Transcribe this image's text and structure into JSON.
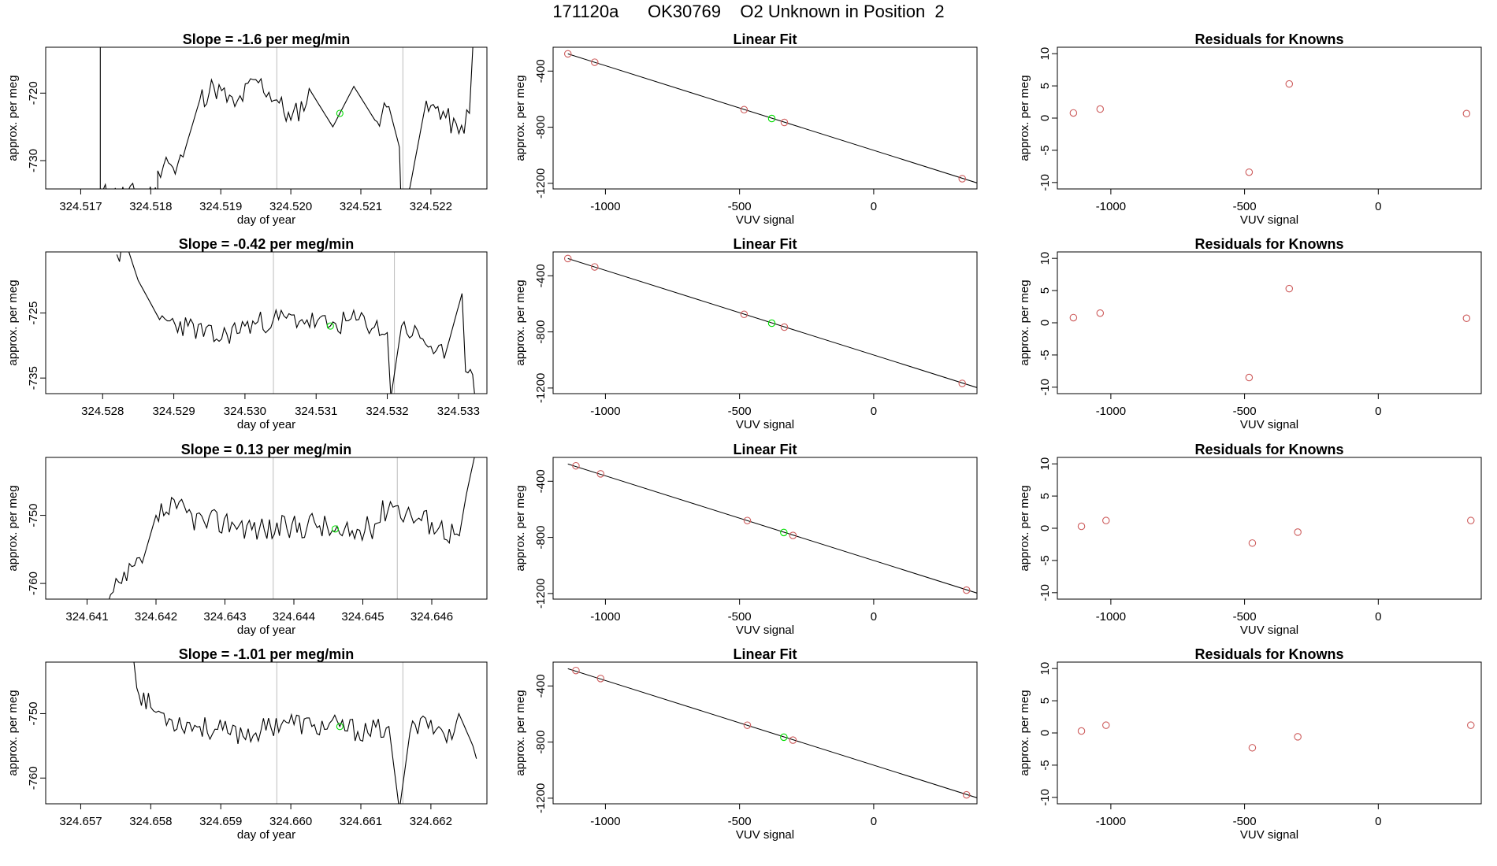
{
  "page": {
    "title": "171120a      OK30769    O2 Unknown in Position  2"
  },
  "colors": {
    "line": "#000000",
    "known_point": "#cd5c5c",
    "unknown_point": "#00dd00",
    "marker_line": "#bdbdbd"
  },
  "chart_data": [
    {
      "type": "line",
      "row": 0,
      "col": 0,
      "title": "Slope =  -1.6  per meg/min",
      "xlabel": "day of year",
      "ylabel": "approx. per meg",
      "xlim": [
        324.5165,
        324.5228
      ],
      "ylim": [
        -734.2,
        -713.2
      ],
      "xticks": [
        324.517,
        324.518,
        324.519,
        324.52,
        324.521,
        324.522
      ],
      "xtick_labels": [
        "324.517",
        "324.518",
        "324.519",
        "324.520",
        "324.521",
        "324.522"
      ],
      "yticks": [
        -730,
        -720
      ],
      "ytick_labels": [
        "-730",
        "-720"
      ],
      "marker_x": [
        324.5198,
        324.5216
      ],
      "unknown_point": [
        324.5207,
        -723
      ],
      "trace": [
        [
          324.51728,
          -712
        ],
        [
          324.51728,
          -735
        ],
        [
          324.5181,
          -735
        ],
        [
          324.5181,
          -731.5
        ],
        [
          324.51822,
          -729.5
        ],
        [
          324.51835,
          -732
        ],
        [
          324.5185,
          -728
        ],
        [
          324.5187,
          -721
        ],
        [
          324.5189,
          -719
        ],
        [
          324.5192,
          -722
        ],
        [
          324.5195,
          -718
        ],
        [
          324.5198,
          -721
        ],
        [
          324.52,
          -724
        ],
        [
          324.5203,
          -720
        ],
        [
          324.5206,
          -725
        ],
        [
          324.5209,
          -719
        ],
        [
          324.5212,
          -724
        ],
        [
          324.5214,
          -722
        ],
        [
          324.52155,
          -728
        ],
        [
          324.52157,
          -735
        ],
        [
          324.5217,
          -734
        ],
        [
          324.5219,
          -723
        ],
        [
          324.5221,
          -722
        ],
        [
          324.5224,
          -726
        ],
        [
          324.52255,
          -723
        ],
        [
          324.5226,
          -713
        ],
        [
          324.52268,
          -712
        ]
      ],
      "noise": 1.8,
      "seed": 11
    },
    {
      "type": "scatter",
      "row": 0,
      "col": 1,
      "title": "Linear Fit",
      "xlabel": "VUV signal",
      "ylabel": "approx. per meg",
      "xlim": [
        -1195,
        385
      ],
      "ylim": [
        -1240,
        -230
      ],
      "xticks": [
        -1000,
        -500,
        0
      ],
      "xtick_labels": [
        "-1000",
        "-500",
        "0"
      ],
      "yticks": [
        -1200,
        -800,
        -400
      ],
      "ytick_labels": [
        "-1200",
        "-800",
        "-400"
      ],
      "fit_line": [
        [
          -1140,
          -277
        ],
        [
          385,
          -1197
        ]
      ],
      "known_x": [
        -1140,
        -1040,
        -483,
        -333,
        330
      ],
      "known_y": [
        -277,
        -337,
        -675,
        -766,
        -1167
      ],
      "unknown": [
        -380,
        -738
      ]
    },
    {
      "type": "scatter",
      "row": 0,
      "col": 2,
      "title": "Residuals for Knowns",
      "xlabel": "VUV signal",
      "ylabel": "approx. per meg",
      "xlim": [
        -1200,
        385
      ],
      "ylim": [
        -11,
        11
      ],
      "xticks": [
        -1000,
        -500,
        0
      ],
      "xtick_labels": [
        "-1000",
        "-500",
        "0"
      ],
      "yticks": [
        -10,
        -5,
        0,
        5,
        10
      ],
      "ytick_labels": [
        "-10",
        "-5",
        "0",
        "5",
        "10"
      ],
      "x": [
        -1140,
        -1040,
        -483,
        -333,
        330
      ],
      "y": [
        0.8,
        1.4,
        -8.4,
        5.3,
        0.7
      ]
    },
    {
      "type": "line",
      "row": 1,
      "col": 0,
      "title": "Slope =  -0.42  per meg/min",
      "xlabel": "day of year",
      "ylabel": "approx. per meg",
      "xlim": [
        324.5272,
        324.5334
      ],
      "ylim": [
        -737.4,
        -715.6
      ],
      "xticks": [
        324.528,
        324.529,
        324.53,
        324.531,
        324.532,
        324.533
      ],
      "xtick_labels": [
        "324.528",
        "324.529",
        "324.530",
        "324.531",
        "324.532",
        "324.533"
      ],
      "yticks": [
        -735,
        -725
      ],
      "ytick_labels": [
        "-735",
        "-725"
      ],
      "marker_x": [
        324.5304,
        324.5321
      ],
      "unknown_point": [
        324.5312,
        -727
      ],
      "trace": [
        [
          324.5282,
          -716
        ],
        [
          324.52835,
          -715
        ],
        [
          324.5285,
          -720
        ],
        [
          324.5288,
          -726
        ],
        [
          324.5292,
          -727
        ],
        [
          324.5296,
          -729
        ],
        [
          324.53,
          -727
        ],
        [
          324.5304,
          -726
        ],
        [
          324.5308,
          -726
        ],
        [
          324.5312,
          -727
        ],
        [
          324.5316,
          -726
        ],
        [
          324.532,
          -728
        ],
        [
          324.53205,
          -738
        ],
        [
          324.5322,
          -727
        ],
        [
          324.5325,
          -729
        ],
        [
          324.5328,
          -732
        ],
        [
          324.53305,
          -722
        ],
        [
          324.5331,
          -734
        ],
        [
          324.5333,
          -738
        ]
      ],
      "noise": 1.8,
      "seed": 23
    },
    {
      "type": "scatter",
      "row": 1,
      "col": 1,
      "title": "Linear Fit",
      "xlabel": "VUV signal",
      "ylabel": "approx. per meg",
      "xlim": [
        -1195,
        385
      ],
      "ylim": [
        -1240,
        -230
      ],
      "xticks": [
        -1000,
        -500,
        0
      ],
      "xtick_labels": [
        "-1000",
        "-500",
        "0"
      ],
      "yticks": [
        -1200,
        -800,
        -400
      ],
      "ytick_labels": [
        "-1200",
        "-800",
        "-400"
      ],
      "fit_line": [
        [
          -1140,
          -277
        ],
        [
          385,
          -1197
        ]
      ],
      "known_x": [
        -1140,
        -1040,
        -483,
        -333,
        330
      ],
      "known_y": [
        -277,
        -337,
        -675,
        -766,
        -1167
      ],
      "unknown": [
        -380,
        -738
      ]
    },
    {
      "type": "scatter",
      "row": 1,
      "col": 2,
      "title": "Residuals for Knowns",
      "xlabel": "VUV signal",
      "ylabel": "approx. per meg",
      "xlim": [
        -1200,
        385
      ],
      "ylim": [
        -11,
        11
      ],
      "xticks": [
        -1000,
        -500,
        0
      ],
      "xtick_labels": [
        "-1000",
        "-500",
        "0"
      ],
      "yticks": [
        -10,
        -5,
        0,
        5,
        10
      ],
      "ytick_labels": [
        "-10",
        "-5",
        "0",
        "5",
        "10"
      ],
      "x": [
        -1140,
        -1040,
        -483,
        -333,
        330
      ],
      "y": [
        0.8,
        1.5,
        -8.5,
        5.3,
        0.7
      ]
    },
    {
      "type": "line",
      "row": 2,
      "col": 0,
      "title": "Slope =  0.13  per meg/min",
      "xlabel": "day of year",
      "ylabel": "approx. per meg",
      "xlim": [
        324.6404,
        324.6468
      ],
      "ylim": [
        -762.3,
        -741.5
      ],
      "xticks": [
        324.641,
        324.642,
        324.643,
        324.644,
        324.645,
        324.646
      ],
      "xtick_labels": [
        "324.641",
        "324.642",
        "324.643",
        "324.644",
        "324.645",
        "324.646"
      ],
      "yticks": [
        -760,
        -750
      ],
      "ytick_labels": [
        "-760",
        "-750"
      ],
      "marker_x": [
        324.6437,
        324.6455
      ],
      "unknown_point": [
        324.6446,
        -752
      ],
      "trace": [
        [
          324.6413,
          -763
        ],
        [
          324.6415,
          -760
        ],
        [
          324.6418,
          -757
        ],
        [
          324.642,
          -750
        ],
        [
          324.6423,
          -749
        ],
        [
          324.6427,
          -751
        ],
        [
          324.6431,
          -751
        ],
        [
          324.6435,
          -752
        ],
        [
          324.6439,
          -752
        ],
        [
          324.6443,
          -751
        ],
        [
          324.6447,
          -753
        ],
        [
          324.6451,
          -752
        ],
        [
          324.6454,
          -748
        ],
        [
          324.6457,
          -750
        ],
        [
          324.646,
          -751
        ],
        [
          324.6464,
          -753
        ],
        [
          324.6465,
          -747
        ],
        [
          324.64665,
          -740
        ]
      ],
      "noise": 2.0,
      "seed": 37
    },
    {
      "type": "scatter",
      "row": 2,
      "col": 1,
      "title": "Linear Fit",
      "xlabel": "VUV signal",
      "ylabel": "approx. per meg",
      "xlim": [
        -1195,
        385
      ],
      "ylim": [
        -1240,
        -230
      ],
      "xticks": [
        -1000,
        -500,
        0
      ],
      "xtick_labels": [
        "-1000",
        "-500",
        "0"
      ],
      "yticks": [
        -1200,
        -800,
        -400
      ],
      "ytick_labels": [
        "-1200",
        "-800",
        "-400"
      ],
      "fit_line": [
        [
          -1140,
          -277
        ],
        [
          385,
          -1197
        ]
      ],
      "known_x": [
        -1110,
        -1018,
        -471,
        -301,
        346
      ],
      "known_y": [
        -290,
        -347,
        -680,
        -786,
        -1176
      ],
      "unknown": [
        -335,
        -765
      ]
    },
    {
      "type": "scatter",
      "row": 2,
      "col": 2,
      "title": "Residuals for Knowns",
      "xlabel": "VUV signal",
      "ylabel": "approx. per meg",
      "xlim": [
        -1200,
        385
      ],
      "ylim": [
        -11,
        11
      ],
      "xticks": [
        -1000,
        -500,
        0
      ],
      "xtick_labels": [
        "-1000",
        "-500",
        "0"
      ],
      "yticks": [
        -10,
        -5,
        0,
        5,
        10
      ],
      "ytick_labels": [
        "-10",
        "-5",
        "0",
        "5",
        "10"
      ],
      "x": [
        -1110,
        -1018,
        -471,
        -301,
        346
      ],
      "y": [
        0.3,
        1.2,
        -2.3,
        -0.6,
        1.2
      ]
    },
    {
      "type": "line",
      "row": 3,
      "col": 0,
      "title": "Slope =  -1.01  per meg/min",
      "xlabel": "day of year",
      "ylabel": "approx. per meg",
      "xlim": [
        324.6565,
        324.6628
      ],
      "ylim": [
        -764,
        -742
      ],
      "xticks": [
        324.657,
        324.658,
        324.659,
        324.66,
        324.661,
        324.662
      ],
      "xtick_labels": [
        "324.657",
        "324.658",
        "324.659",
        "324.660",
        "324.661",
        "324.662"
      ],
      "yticks": [
        -760,
        -750
      ],
      "ytick_labels": [
        "-760",
        "-750"
      ],
      "marker_x": [
        324.6598,
        324.6616
      ],
      "unknown_point": [
        324.6607,
        -752
      ],
      "trace": [
        [
          324.65775,
          -741
        ],
        [
          324.6578,
          -746
        ],
        [
          324.658,
          -749
        ],
        [
          324.6583,
          -751
        ],
        [
          324.6587,
          -752
        ],
        [
          324.6591,
          -753
        ],
        [
          324.6595,
          -753
        ],
        [
          324.6599,
          -751
        ],
        [
          324.6603,
          -752
        ],
        [
          324.6607,
          -752
        ],
        [
          324.6611,
          -753
        ],
        [
          324.6614,
          -752
        ],
        [
          324.66155,
          -765
        ],
        [
          324.6617,
          -753
        ],
        [
          324.662,
          -751
        ],
        [
          324.6623,
          -754
        ],
        [
          324.6624,
          -750
        ],
        [
          324.6626,
          -755
        ],
        [
          324.66265,
          -757
        ]
      ],
      "noise": 1.8,
      "seed": 53
    },
    {
      "type": "scatter",
      "row": 3,
      "col": 1,
      "title": "Linear Fit",
      "xlabel": "VUV signal",
      "ylabel": "approx. per meg",
      "xlim": [
        -1195,
        385
      ],
      "ylim": [
        -1240,
        -230
      ],
      "xticks": [
        -1000,
        -500,
        0
      ],
      "xtick_labels": [
        "-1000",
        "-500",
        "0"
      ],
      "yticks": [
        -1200,
        -800,
        -400
      ],
      "ytick_labels": [
        "-1200",
        "-800",
        "-400"
      ],
      "fit_line": [
        [
          -1140,
          -277
        ],
        [
          385,
          -1197
        ]
      ],
      "known_x": [
        -1110,
        -1018,
        -471,
        -301,
        346
      ],
      "known_y": [
        -290,
        -347,
        -680,
        -786,
        -1176
      ],
      "unknown": [
        -335,
        -765
      ]
    },
    {
      "type": "scatter",
      "row": 3,
      "col": 2,
      "title": "Residuals for Knowns",
      "xlabel": "VUV signal",
      "ylabel": "approx. per meg",
      "xlim": [
        -1200,
        385
      ],
      "ylim": [
        -11,
        11
      ],
      "xticks": [
        -1000,
        -500,
        0
      ],
      "xtick_labels": [
        "-1000",
        "-500",
        "0"
      ],
      "yticks": [
        -10,
        -5,
        0,
        5,
        10
      ],
      "ytick_labels": [
        "-10",
        "-5",
        "0",
        "5",
        "10"
      ],
      "x": [
        -1110,
        -1018,
        -471,
        -301,
        346
      ],
      "y": [
        0.3,
        1.2,
        -2.3,
        -0.6,
        1.2
      ]
    }
  ]
}
